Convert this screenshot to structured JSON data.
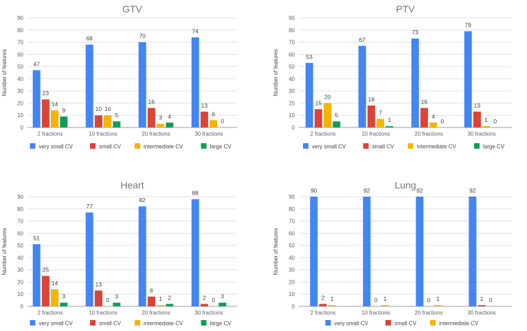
{
  "chart_data": [
    {
      "type": "bar",
      "title": "GTV",
      "ylabel": "Number of features",
      "xlabel": "",
      "ylim": [
        0,
        90
      ],
      "yticks": [
        0,
        10,
        20,
        30,
        40,
        50,
        60,
        70,
        80,
        90
      ],
      "grid": true,
      "legend_position": "bottom",
      "categories": [
        "2 fractions",
        "10 fractions",
        "20 fractions",
        "30 fractions"
      ],
      "series": [
        {
          "name": "very small CV",
          "color": "#4285f4",
          "values": [
            47,
            68,
            70,
            74
          ],
          "labels": [
            "47",
            "68",
            "70",
            "74"
          ]
        },
        {
          "name": "small CV",
          "color": "#db4437",
          "values": [
            23,
            10,
            16,
            13
          ],
          "labels": [
            "23",
            "10",
            "16",
            "13"
          ]
        },
        {
          "name": "intermediate CV",
          "color": "#f4b400",
          "values": [
            14,
            10,
            3,
            6
          ],
          "labels": [
            "14",
            "10",
            "3",
            "6"
          ]
        },
        {
          "name": "large CV",
          "color": "#0f9d58",
          "values": [
            9,
            5,
            4,
            0
          ],
          "labels": [
            "9",
            "5",
            "4",
            "0"
          ]
        }
      ]
    },
    {
      "type": "bar",
      "title": "PTV",
      "ylabel": "Number of features",
      "xlabel": "",
      "ylim": [
        0,
        90
      ],
      "yticks": [
        0,
        10,
        20,
        30,
        40,
        50,
        60,
        70,
        80,
        90
      ],
      "grid": true,
      "legend_position": "bottom",
      "categories": [
        "2 fractions",
        "10 fractions",
        "20 fractions",
        "30 fractions"
      ],
      "series": [
        {
          "name": "very small CV",
          "color": "#4285f4",
          "values": [
            53,
            67,
            73,
            79
          ],
          "labels": [
            "53",
            "67",
            "73",
            "79"
          ]
        },
        {
          "name": "small CV",
          "color": "#db4437",
          "values": [
            15,
            18,
            16,
            13
          ],
          "labels": [
            "15",
            "18",
            "16",
            "13"
          ]
        },
        {
          "name": "intermediate CV",
          "color": "#f4b400",
          "values": [
            20,
            7,
            4,
            1
          ],
          "labels": [
            "20",
            "7",
            "4",
            "1"
          ]
        },
        {
          "name": "large CV",
          "color": "#0f9d58",
          "values": [
            5,
            1,
            0,
            0
          ],
          "labels": [
            "5",
            "1",
            "0",
            "0"
          ]
        }
      ]
    },
    {
      "type": "bar",
      "title": "Heart",
      "ylabel": "Number of features",
      "xlabel": "",
      "ylim": [
        0,
        90
      ],
      "yticks": [
        0,
        10,
        20,
        30,
        40,
        50,
        60,
        70,
        80,
        90
      ],
      "grid": true,
      "legend_position": "bottom",
      "categories": [
        "2 fractions",
        "10 fractions",
        "20 fractions",
        "30 fractions"
      ],
      "series": [
        {
          "name": "very small CV",
          "color": "#4285f4",
          "values": [
            51,
            77,
            82,
            88
          ],
          "labels": [
            "51",
            "77",
            "82",
            "88"
          ]
        },
        {
          "name": "small CV",
          "color": "#db4437",
          "values": [
            25,
            13,
            8,
            2
          ],
          "labels": [
            "25",
            "13",
            "8",
            "2"
          ]
        },
        {
          "name": "intermediate CV",
          "color": "#f4b400",
          "values": [
            14,
            0,
            1,
            0
          ],
          "labels": [
            "14",
            "0",
            "1",
            "0"
          ]
        },
        {
          "name": "large CV",
          "color": "#0f9d58",
          "values": [
            3,
            3,
            2,
            3
          ],
          "labels": [
            "3",
            "3",
            "2",
            "3"
          ]
        }
      ]
    },
    {
      "type": "bar",
      "title": "Lung",
      "ylabel": "Number of features",
      "xlabel": "",
      "ylim": [
        0,
        90
      ],
      "yticks": [
        0,
        10,
        20,
        30,
        40,
        50,
        60,
        70,
        80,
        90
      ],
      "grid": true,
      "legend_position": "bottom",
      "categories": [
        "2 fractions",
        "10 fractions",
        "20 fractions",
        "30 fractions"
      ],
      "series": [
        {
          "name": "very small CV",
          "color": "#4285f4",
          "values": [
            90,
            92,
            92,
            92
          ],
          "labels": [
            "90",
            "92",
            "92",
            "92"
          ]
        },
        {
          "name": "small CV",
          "color": "#db4437",
          "values": [
            2,
            0,
            0,
            1
          ],
          "labels": [
            "2",
            "0",
            "0",
            "1"
          ]
        },
        {
          "name": "intermediate CV",
          "color": "#f4b400",
          "values": [
            1,
            1,
            1,
            0
          ],
          "labels": [
            "1",
            "1",
            "1",
            "0"
          ]
        }
      ]
    }
  ]
}
